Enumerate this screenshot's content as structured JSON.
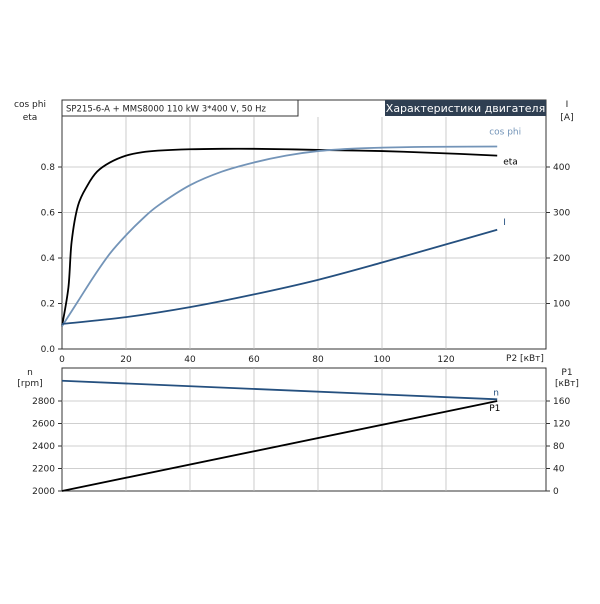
{
  "header": {
    "pump_info": "SP215-6-A + MMS8000   110 kW   3*400 V, 50 Hz",
    "title": "Характеристики двигателя"
  },
  "colors": {
    "eta": "#000000",
    "cos_phi": "#7394b8",
    "current": "#25507f",
    "speed": "#25507f",
    "p1": "#000000",
    "title_bg": "#2f3f52",
    "grid": "#bfbfbf"
  },
  "chart_data": [
    {
      "type": "line",
      "name": "efficiency-current-chart",
      "left_axis_label_1": "cos phi",
      "left_axis_label_2": "eta",
      "right_axis_label_1": "I",
      "right_axis_label_2": "[A]",
      "xlabel": "P2 [кВт]",
      "xlim": [
        0,
        150
      ],
      "x_ticks": [
        "0",
        "20",
        "40",
        "60",
        "80",
        "100",
        "120"
      ],
      "ylim_left": [
        0,
        1.0
      ],
      "y_ticks_left": [
        "0.0",
        "0.2",
        "0.4",
        "0.6",
        "0.8"
      ],
      "ylim_right": [
        0,
        500
      ],
      "y_ticks_right": [
        "100",
        "200",
        "300",
        "400"
      ],
      "grid": true,
      "series": [
        {
          "name": "eta",
          "axis": "left",
          "x": [
            0,
            2,
            3,
            5,
            8,
            11,
            15,
            20,
            25,
            30,
            40,
            50,
            60,
            70,
            80,
            100,
            120,
            136
          ],
          "y": [
            0.1,
            0.27,
            0.47,
            0.63,
            0.72,
            0.78,
            0.82,
            0.85,
            0.865,
            0.872,
            0.878,
            0.88,
            0.88,
            0.878,
            0.875,
            0.87,
            0.86,
            0.85
          ]
        },
        {
          "name": "cos phi",
          "axis": "left",
          "x": [
            0,
            5,
            10,
            15,
            20,
            25,
            30,
            40,
            50,
            60,
            70,
            80,
            90,
            100,
            110,
            120,
            136
          ],
          "y": [
            0.1,
            0.21,
            0.32,
            0.42,
            0.5,
            0.57,
            0.63,
            0.72,
            0.78,
            0.82,
            0.85,
            0.87,
            0.88,
            0.885,
            0.888,
            0.889,
            0.89
          ]
        },
        {
          "name": "I",
          "axis": "right",
          "x": [
            0,
            20,
            40,
            60,
            80,
            100,
            120,
            136
          ],
          "y": [
            55,
            70,
            92,
            120,
            152,
            190,
            230,
            262
          ]
        }
      ]
    },
    {
      "type": "line",
      "name": "speed-power-chart",
      "left_axis_label_1": "n",
      "left_axis_label_2": "[rpm]",
      "right_axis_label_1": "P1",
      "right_axis_label_2": "[кВт]",
      "xlim": [
        0,
        150
      ],
      "ylim_left": [
        2000,
        3000
      ],
      "y_ticks_left": [
        "2000",
        "2200",
        "2400",
        "2600",
        "2800"
      ],
      "ylim_right": [
        0,
        200
      ],
      "y_ticks_right": [
        "0",
        "40",
        "80",
        "120",
        "160"
      ],
      "grid": true,
      "series": [
        {
          "name": "n",
          "axis": "left",
          "x": [
            0,
            136
          ],
          "y": [
            2980,
            2815
          ]
        },
        {
          "name": "P1",
          "axis": "right",
          "x": [
            0,
            136
          ],
          "y": [
            0,
            160
          ]
        }
      ]
    }
  ]
}
